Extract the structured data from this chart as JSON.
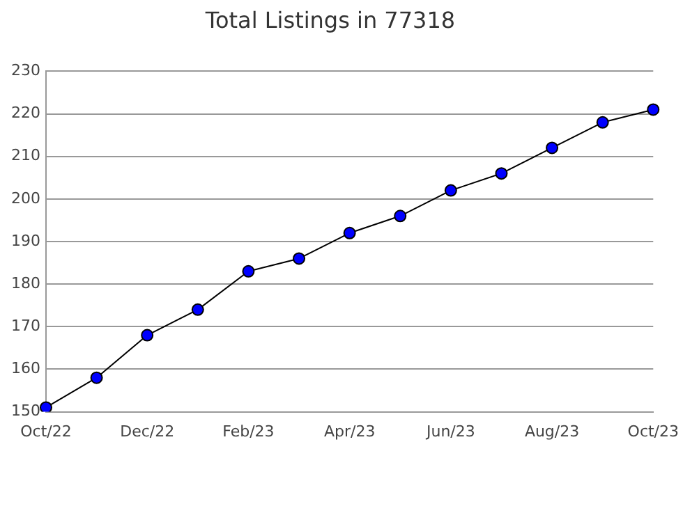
{
  "chart_data": {
    "type": "line",
    "title": "Total Listings in 77318",
    "categories": [
      "Oct/22",
      null,
      "Dec/22",
      null,
      "Feb/23",
      null,
      "Apr/23",
      null,
      "Jun/23",
      null,
      "Aug/23",
      null,
      "Oct/23"
    ],
    "series": [
      {
        "color": "#0000ff",
        "values": [
          151,
          158,
          168,
          174,
          183,
          186,
          192,
          196,
          202,
          206,
          212,
          218,
          221
        ]
      }
    ],
    "ylim": [
      150,
      230
    ],
    "yticks": [
      150,
      160,
      170,
      180,
      190,
      200,
      210,
      220,
      230
    ],
    "grid": "y",
    "legend": false,
    "marker": "circle",
    "line_style": "solid"
  }
}
